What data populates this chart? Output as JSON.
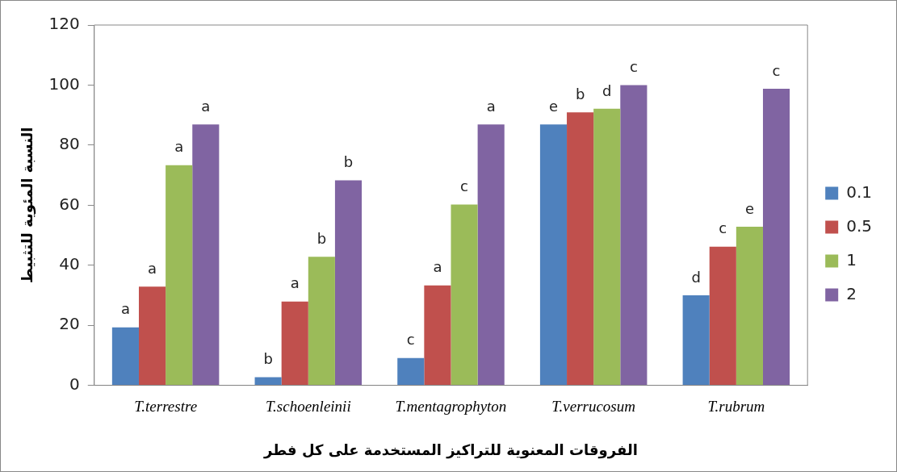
{
  "chart_data": {
    "type": "bar",
    "xlabel": "الفروقات المعنوية للتراكيز المستخدمة على كل فطر",
    "ylabel": "النسبة المئوية للتثبيط",
    "categories": [
      "T.terrestre",
      "T.schoenleinii",
      "T.mentagrophyton",
      "T.verrucosum",
      "T.rubrum"
    ],
    "series": [
      {
        "name": "0.1",
        "color": "#4f81bd",
        "values": [
          19.3,
          2.7,
          9.1,
          86.9,
          30
        ],
        "value_labels": [
          "a",
          "b",
          "c",
          "e",
          "d"
        ]
      },
      {
        "name": "0.5",
        "color": "#c0504d",
        "values": [
          32.9,
          27.9,
          33.3,
          90.9,
          46.2
        ],
        "value_labels": [
          "a",
          "a",
          "a",
          "b",
          "c"
        ]
      },
      {
        "name": "1",
        "color": "#9bbb59",
        "values": [
          73.3,
          42.8,
          60.2,
          92.1,
          52.8
        ],
        "value_labels": [
          "a",
          "b",
          "c",
          "d",
          "e"
        ]
      },
      {
        "name": "2",
        "color": "#8064a2",
        "values": [
          86.9,
          68.3,
          86.9,
          100,
          98.8
        ],
        "value_labels": [
          "a",
          "b",
          "a",
          "c",
          "c"
        ]
      }
    ],
    "ylim": [
      0,
      120
    ],
    "yticks": [
      0,
      20,
      40,
      60,
      80,
      100,
      120
    ],
    "grid": false,
    "legend": "right"
  }
}
